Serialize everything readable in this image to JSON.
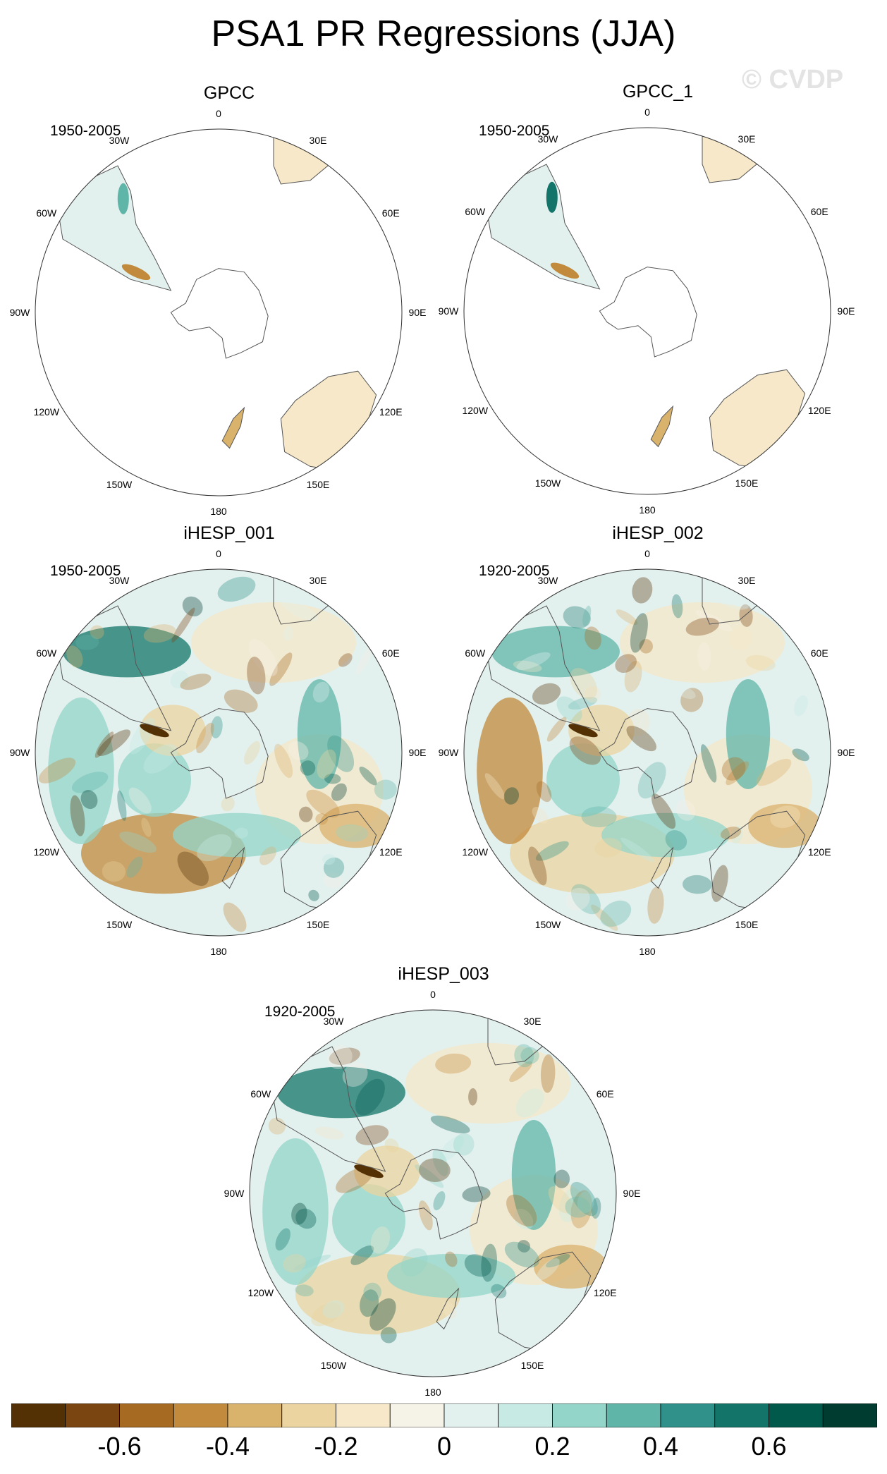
{
  "title": "PSA1 PR Regressions (JJA)",
  "watermark": "© CVDP",
  "lon_labels": [
    "0",
    "30E",
    "60E",
    "90E",
    "120E",
    "150E",
    "180",
    "150W",
    "120W",
    "90W",
    "60W",
    "30W"
  ],
  "panels": [
    {
      "name": "GPCC",
      "period": "1950-2005",
      "coverage": "land"
    },
    {
      "name": "GPCC_1",
      "period": "1950-2005",
      "coverage": "land"
    },
    {
      "name": "iHESP_001",
      "period": "1950-2005",
      "coverage": "full"
    },
    {
      "name": "iHESP_002",
      "period": "1920-2005",
      "coverage": "full"
    },
    {
      "name": "iHESP_003",
      "period": "1920-2005",
      "coverage": "full"
    }
  ],
  "colorbar": {
    "colors": [
      "#543005",
      "#7a4510",
      "#a66a22",
      "#c28a3c",
      "#d9b26c",
      "#ebd49f",
      "#f6e8c8",
      "#f5f2e7",
      "#e2f0ee",
      "#c7eae4",
      "#93d5c9",
      "#5fb5a8",
      "#2f9189",
      "#137569",
      "#01594c",
      "#003c30"
    ],
    "tick_labels": [
      "-0.6",
      "-0.4",
      "-0.2",
      "0",
      "0.2",
      "0.4",
      "0.6"
    ]
  }
}
